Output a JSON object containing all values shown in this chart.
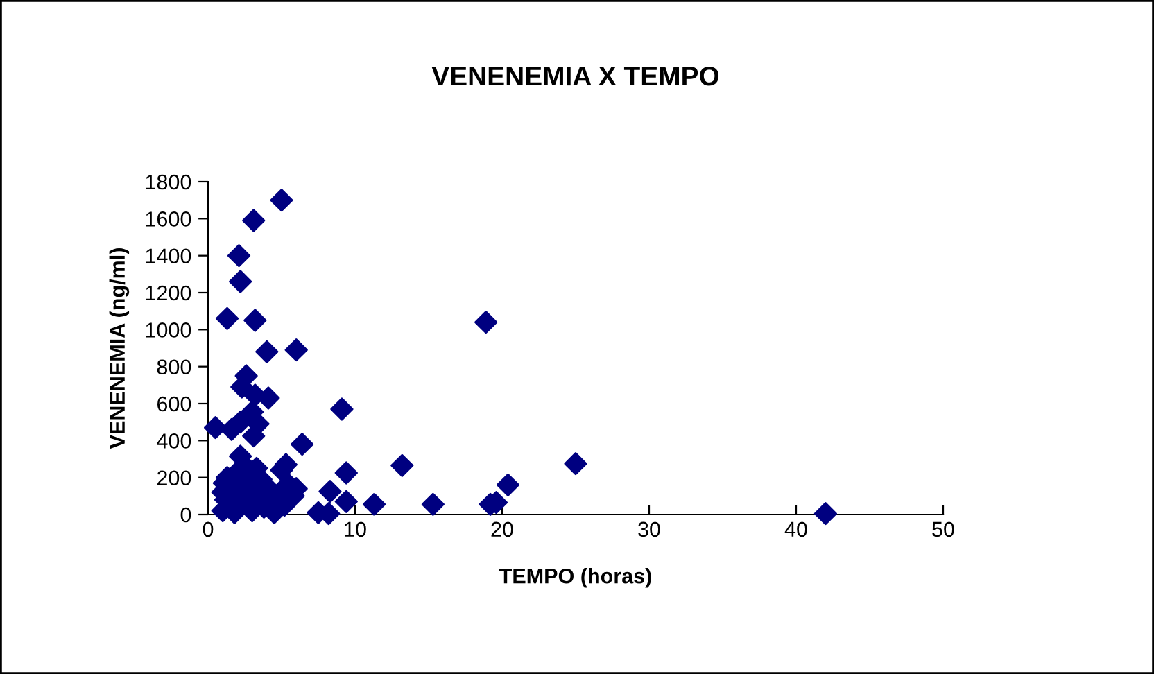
{
  "chart_data": {
    "type": "scatter",
    "title": "VENENEMIA X TEMPO",
    "xlabel": "TEMPO (horas)",
    "ylabel": "VENENEMIA (ng/ml)",
    "xlim": [
      0,
      50
    ],
    "xticks": [
      0,
      10,
      20,
      30,
      40,
      50
    ],
    "ylim": [
      0,
      1800
    ],
    "yticks": [
      0,
      200,
      400,
      600,
      800,
      1000,
      1200,
      1400,
      1600,
      1800
    ],
    "grid": false,
    "legend": false,
    "marker": "diamond",
    "series": [
      {
        "color": "#000080",
        "x": [
          5.0,
          3.1,
          2.1,
          2.2,
          1.3,
          3.2,
          4.0,
          6.0,
          2.6,
          2.3,
          3.2,
          4.1,
          3.0,
          9.1,
          0.5,
          1.6,
          2.2,
          3.1,
          3.4,
          2.2,
          6.4,
          9.4,
          8.3,
          9.4,
          7.5,
          8.2,
          18.9,
          13.2,
          25.0,
          20.4,
          11.3,
          15.3,
          19.2,
          19.6,
          42.0,
          1.0,
          1.0,
          1.2,
          1.3,
          1.6,
          1.8,
          2.0,
          2.0,
          2.4,
          2.5,
          2.8,
          3.0,
          3.0,
          3.3,
          3.5,
          3.6,
          3.8,
          4.0,
          4.2,
          4.5,
          4.9,
          5.0,
          5.2,
          5.5,
          5.8,
          1.1,
          5.3,
          6.0
        ],
        "values": [
          1700,
          1590,
          1400,
          1260,
          1060,
          1050,
          880,
          890,
          750,
          690,
          645,
          630,
          555,
          570,
          470,
          460,
          500,
          425,
          490,
          315,
          380,
          225,
          125,
          70,
          10,
          5,
          1040,
          265,
          275,
          160,
          55,
          55,
          55,
          65,
          5,
          20,
          120,
          80,
          200,
          150,
          10,
          90,
          230,
          180,
          60,
          240,
          20,
          130,
          250,
          100,
          190,
          40,
          150,
          80,
          10,
          120,
          240,
          50,
          160,
          100,
          170,
          270,
          140
        ]
      }
    ]
  }
}
